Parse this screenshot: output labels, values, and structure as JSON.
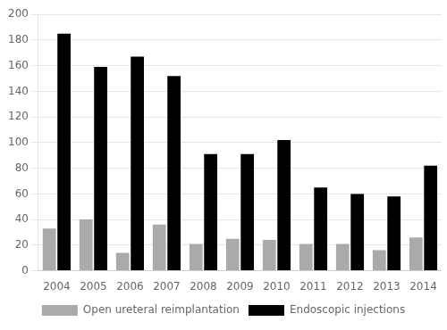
{
  "chart_data": {
    "type": "bar",
    "categories": [
      "2004",
      "2005",
      "2006",
      "2007",
      "2008",
      "2009",
      "2010",
      "2011",
      "2012",
      "2013",
      "2014"
    ],
    "series": [
      {
        "name": "Open ureteral reimplantation",
        "color": "#aaaaaa",
        "values": [
          33,
          40,
          14,
          36,
          21,
          25,
          24,
          21,
          21,
          16,
          26
        ]
      },
      {
        "name": "Endoscopic injections",
        "color": "#000000",
        "values": [
          185,
          159,
          167,
          152,
          91,
          91,
          102,
          65,
          60,
          58,
          82
        ]
      }
    ],
    "ylim": [
      0,
      200
    ],
    "yticks": [
      0,
      20,
      40,
      60,
      80,
      100,
      120,
      140,
      160,
      180,
      200
    ],
    "grid": true,
    "legend": "bottom"
  }
}
